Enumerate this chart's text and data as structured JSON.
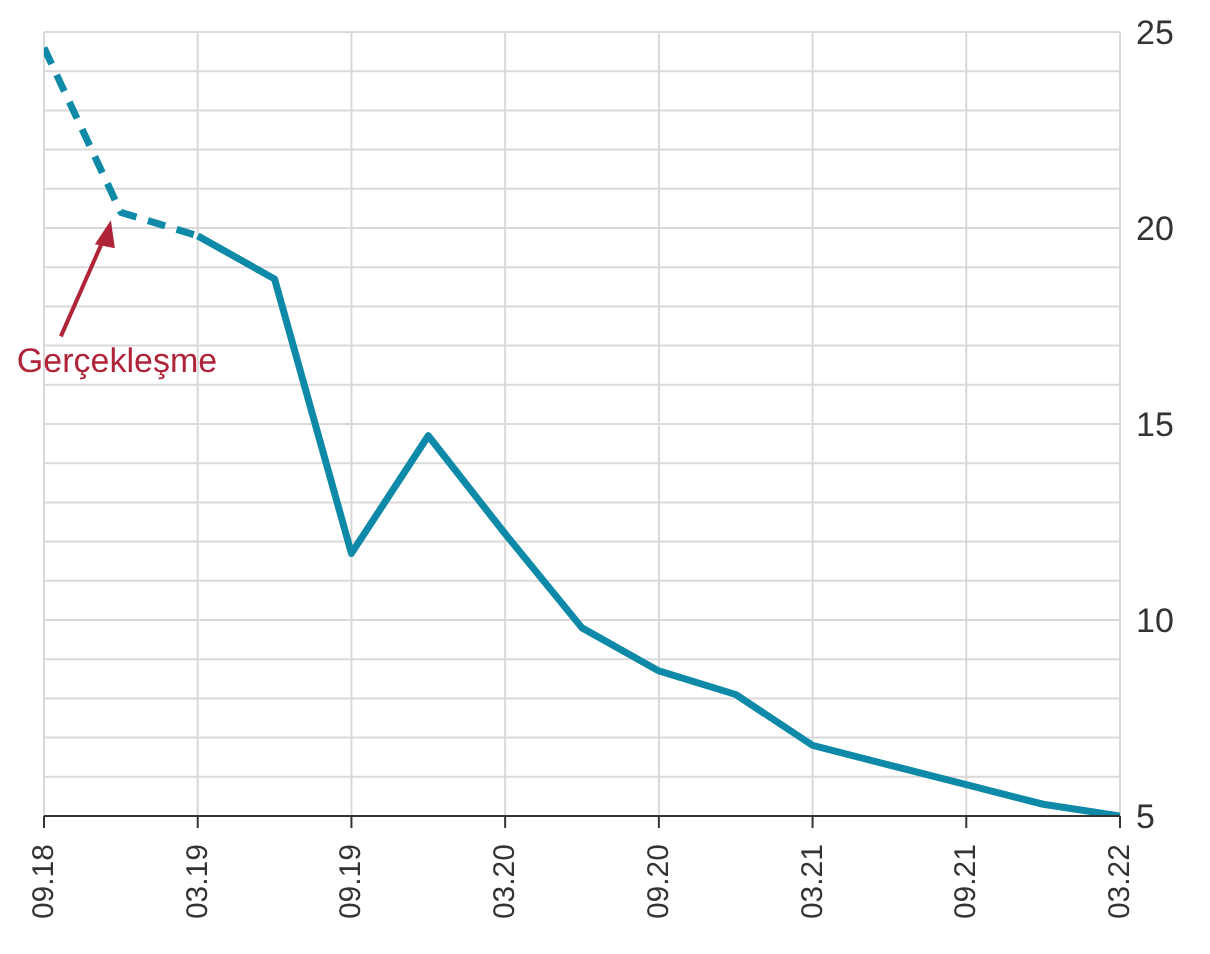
{
  "chart_data": {
    "type": "line",
    "grid": true,
    "marker": "none",
    "series": [
      {
        "color": "#0e8aa8",
        "line_style": "dashed",
        "x": [
          "2018-09",
          "2018-12",
          "2019-03"
        ],
        "values": [
          24.6,
          20.4,
          19.8
        ]
      },
      {
        "color": "#0e8aa8",
        "line_style": "solid",
        "x": [
          "2019-03",
          "2019-06",
          "2019-09",
          "2019-12",
          "2020-03",
          "2020-06",
          "2020-09",
          "2020-12",
          "2021-03",
          "2021-06",
          "2021-09",
          "2021-12",
          "2022-03"
        ],
        "values": [
          19.8,
          18.7,
          11.7,
          14.7,
          12.2,
          9.8,
          8.7,
          8.1,
          6.8,
          6.3,
          5.8,
          5.3,
          5.0
        ]
      }
    ],
    "xlim": [
      "2018-09",
      "2022-03"
    ],
    "xticks": [
      {
        "value": "2018-09",
        "label": "09.18"
      },
      {
        "value": "2019-03",
        "label": "03.19"
      },
      {
        "value": "2019-09",
        "label": "09.19"
      },
      {
        "value": "2020-03",
        "label": "03.20"
      },
      {
        "value": "2020-09",
        "label": "09.20"
      },
      {
        "value": "2021-03",
        "label": "03.21"
      },
      {
        "value": "2021-09",
        "label": "09.21"
      },
      {
        "value": "2022-03",
        "label": "03.22"
      }
    ],
    "ylim": [
      5,
      25
    ],
    "yticks": [
      5,
      {
        "value": 6,
        "label": null
      },
      {
        "value": 7,
        "label": null
      },
      {
        "value": 8,
        "label": null
      },
      {
        "value": 9,
        "label": null
      },
      10,
      {
        "value": 11,
        "label": null
      },
      {
        "value": 12,
        "label": null
      },
      {
        "value": 13,
        "label": null
      },
      {
        "value": 14,
        "label": null
      },
      15,
      {
        "value": 16,
        "label": null
      },
      {
        "value": 17,
        "label": null
      },
      {
        "value": 18,
        "label": null
      },
      {
        "value": 19,
        "label": null
      },
      20,
      {
        "value": 21,
        "label": null
      },
      {
        "value": 22,
        "label": null
      },
      {
        "value": 23,
        "label": null
      },
      {
        "value": 24,
        "label": null
      },
      25
    ],
    "annotations": [
      "Gerçekleşme"
    ]
  }
}
